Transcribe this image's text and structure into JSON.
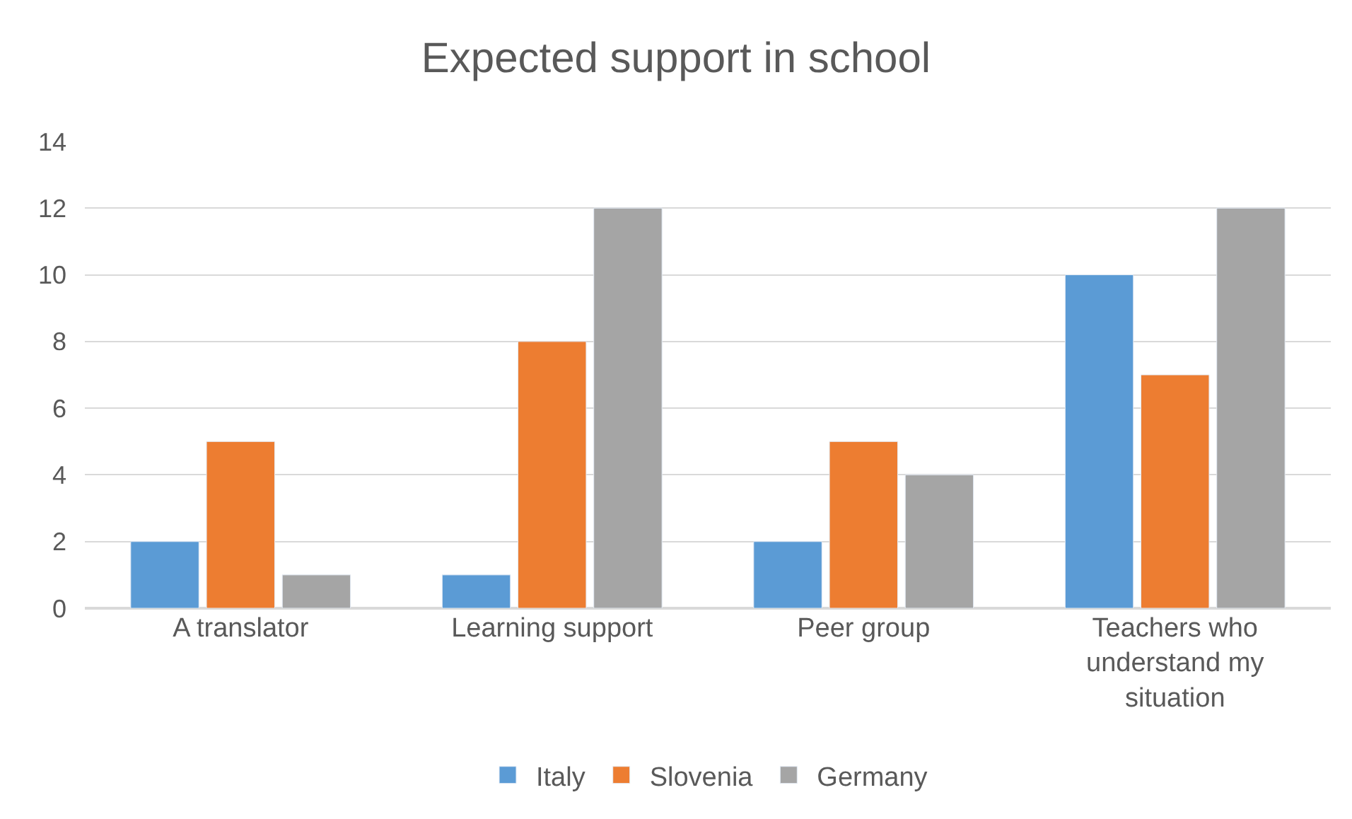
{
  "chart_data": {
    "type": "bar",
    "title": "Expected support in school",
    "categories": [
      "A translator",
      "Learning support",
      "Peer group",
      "Teachers who understand my situation"
    ],
    "series": [
      {
        "name": "Italy",
        "color": "#5b9bd5",
        "values": [
          2,
          1,
          2,
          10
        ]
      },
      {
        "name": "Slovenia",
        "color": "#ed7d31",
        "values": [
          5,
          8,
          5,
          7
        ]
      },
      {
        "name": "Germany",
        "color": "#a5a5a5",
        "values": [
          1,
          12,
          4,
          12
        ]
      }
    ],
    "ylim": [
      0,
      14
    ],
    "yticks": [
      0,
      2,
      4,
      6,
      8,
      10,
      12,
      14
    ],
    "grid": "y",
    "legend": "bottom"
  }
}
